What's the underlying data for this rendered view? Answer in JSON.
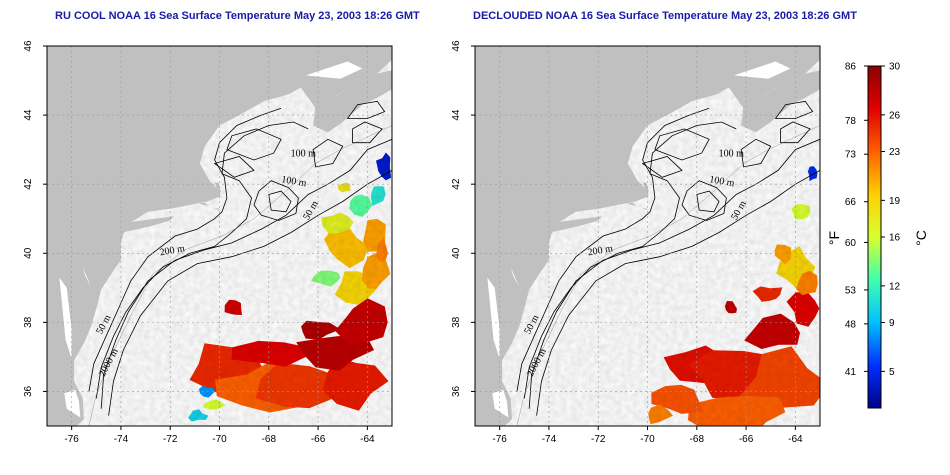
{
  "colors": {
    "land": "#c0c0c0",
    "ocean": "#ffffff",
    "contour": "#000000",
    "grid": "#9a9a9a",
    "title": "#1a1aa8"
  },
  "maps": [
    {
      "title": "RU COOL NOAA 16 Sea Surface Temperature May 23, 2003 18:26 GMT",
      "variant": "raw"
    },
    {
      "title": "DECLOUDED NOAA 16 Sea Surface Temperature May 23, 2003 18:26 GMT",
      "variant": "declouded"
    }
  ],
  "axes": {
    "lon_range": [
      -77,
      -63
    ],
    "lat_range": [
      35,
      46
    ],
    "lon_ticks": [
      -76,
      -74,
      -72,
      -70,
      -68,
      -66,
      -64
    ],
    "lat_ticks": [
      36,
      38,
      40,
      42,
      44,
      46
    ]
  },
  "contour_labels": [
    "100 m",
    "100 m",
    "50 m",
    "200 m",
    "50 m",
    "2000 m"
  ],
  "colorbar": {
    "celsius_range": [
      2,
      30
    ],
    "fahrenheit_ticks": [
      "86",
      "78",
      "73",
      "66",
      "60",
      "53",
      "48",
      "41"
    ],
    "fahrenheit_values": [
      86,
      78,
      73,
      66,
      60,
      53,
      48,
      41
    ],
    "celsius_ticks": [
      "30",
      "26",
      "23",
      "19",
      "16",
      "12",
      "9",
      "5"
    ],
    "celsius_values": [
      30,
      26,
      23,
      19,
      16,
      12,
      9,
      5
    ],
    "fahrenheit_label": "°F",
    "celsius_label": "°C",
    "gradient": [
      "#00008c",
      "#0030ff",
      "#00c0ff",
      "#40ffb0",
      "#d8ff30",
      "#ffd000",
      "#ff6000",
      "#e00000",
      "#8c0000"
    ]
  }
}
